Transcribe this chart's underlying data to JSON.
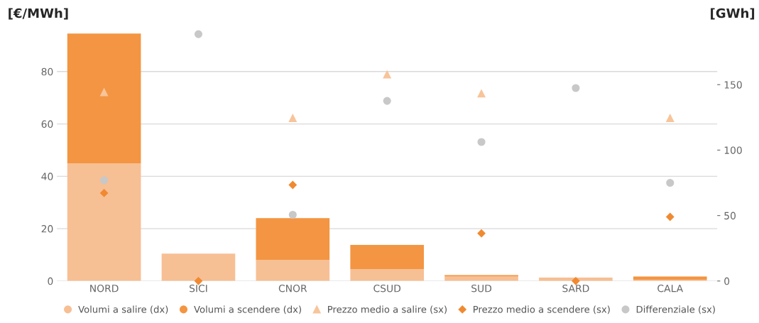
{
  "chart_data": {
    "type": "bar",
    "stacked": true,
    "ylabel": "[€/MWh]",
    "y2label": "[GWh]",
    "categories": [
      "NORD",
      "SICI",
      "CNOR",
      "CSUD",
      "SUD",
      "SARD",
      "CALA"
    ],
    "series": [
      {
        "name": "Volumi a salire (dx)",
        "axis": "y2",
        "color": "#f7bf94",
        "values": [
          90,
          21,
          16,
          9,
          3.5,
          2.6,
          1
        ]
      },
      {
        "name": "Volumi a scendere (dx)",
        "axis": "y2",
        "color": "#f39542",
        "values": [
          99,
          null,
          32,
          18.6,
          1,
          null,
          2.4
        ]
      },
      {
        "name": "Prezzo medio a salire (sx)",
        "type": "scatter",
        "marker": "triangle",
        "color": "#f8c49a",
        "values": [
          72.1,
          null,
          62.2,
          78.9,
          71.6,
          null,
          62.2
        ]
      },
      {
        "name": "Prezzo medio a scendere (sx)",
        "type": "scatter",
        "marker": "diamond",
        "color": "#f08a32",
        "values": [
          33.6,
          0,
          36.7,
          null,
          18.2,
          0,
          24.5
        ]
      },
      {
        "name": "Differenziale (sx)",
        "type": "scatter",
        "marker": "circle",
        "color": "#c8c8c8",
        "values": [
          38.5,
          94.3,
          25.3,
          68.8,
          53.1,
          73.7,
          37.5
        ]
      }
    ],
    "ylim": [
      0,
      95
    ],
    "yticks": [
      0,
      20,
      40,
      60,
      80
    ],
    "y2lim": [
      0,
      190
    ],
    "y2ticks": [
      0,
      50,
      100,
      150
    ],
    "grid": "y",
    "legend": "bottom"
  }
}
